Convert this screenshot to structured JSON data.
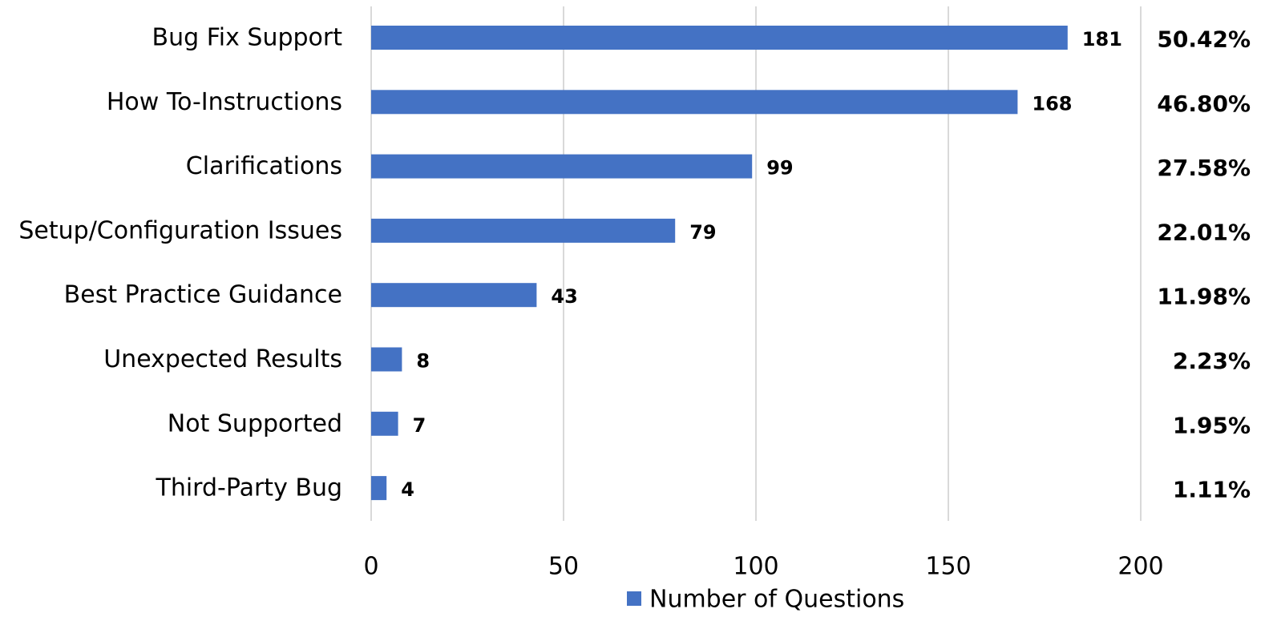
{
  "chart_data": {
    "type": "bar",
    "orientation": "horizontal",
    "categories": [
      "Bug Fix Support",
      "How To-Instructions",
      "Clarifications",
      "Setup/Configuration Issues",
      "Best Practice Guidance",
      "Unexpected Results",
      "Not Supported",
      "Third-Party Bug"
    ],
    "series": [
      {
        "name": "Number of Questions",
        "values": [
          181,
          168,
          99,
          79,
          43,
          8,
          7,
          4
        ]
      }
    ],
    "percentages": [
      "50.42%",
      "46.80%",
      "27.58%",
      "22.01%",
      "11.98%",
      "2.23%",
      "1.95%",
      "1.11%"
    ],
    "xlim": [
      0,
      200
    ],
    "x_ticks": [
      "0",
      "50",
      "100",
      "150",
      "200"
    ],
    "grid": true,
    "legend_position": "bottom",
    "title": "",
    "xlabel": "",
    "ylabel": "",
    "colors": {
      "bar": "#4472C4",
      "grid": "#d9d9d9"
    }
  }
}
